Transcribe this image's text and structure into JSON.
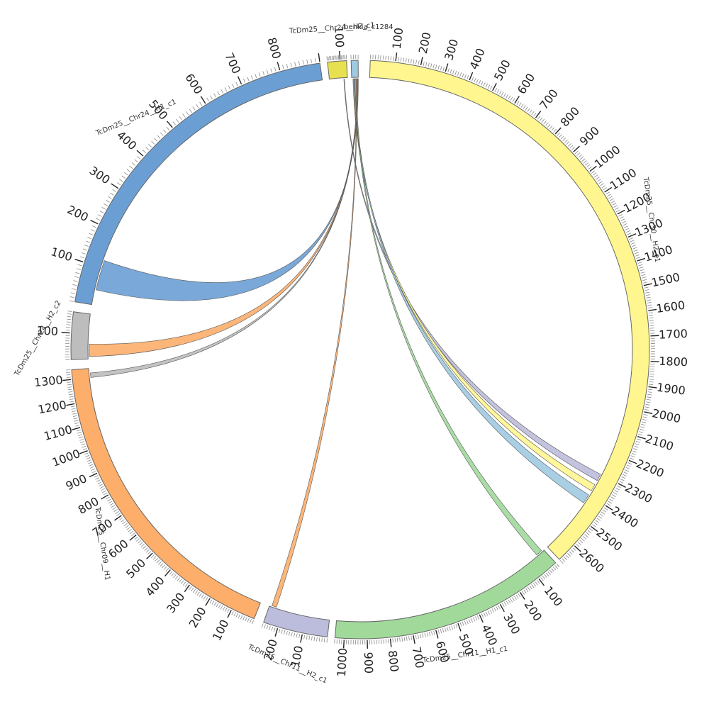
{
  "diagram": {
    "type": "circos",
    "segments": [
      {
        "id": "s_chr30",
        "name": "TcDm25__Chr30__H2_c1",
        "length": 2680,
        "color": "#fff68f",
        "ticks": [
          "100",
          "200",
          "300",
          "400",
          "500",
          "600",
          "700",
          "800",
          "900",
          "1000",
          "1100",
          "1200",
          "1300",
          "1400",
          "1500",
          "1600",
          "1700",
          "1800",
          "1900",
          "2000",
          "2100",
          "2200",
          "2300",
          "2400",
          "2500",
          "2600"
        ]
      },
      {
        "id": "s_chr11h1",
        "name": "TcDm25__Chr11__H1_c1",
        "length": 1040,
        "color": "#a1d99b",
        "ticks": [
          "100",
          "200",
          "300",
          "400",
          "500",
          "600",
          "700",
          "800",
          "900",
          "1000"
        ]
      },
      {
        "id": "s_chr11h2",
        "name": "TcDm25__Chr11__H2_c1",
        "length": 260,
        "color": "#bcbddc",
        "ticks": [
          "100",
          "200"
        ]
      },
      {
        "id": "s_chr09",
        "name": "TcDm25__Chr09__H1",
        "length": 1340,
        "color": "#fdae6b",
        "ticks": [
          "100",
          "200",
          "300",
          "400",
          "500",
          "600",
          "700",
          "800",
          "900",
          "1000",
          "1100",
          "1200",
          "1300"
        ]
      },
      {
        "id": "s_chr24h2c2",
        "name": "TcDm25__Chr24__H2_c2",
        "length": 180,
        "color": "#bdbdbd",
        "ticks": [
          "100"
        ]
      },
      {
        "id": "s_chr24h1",
        "name": "TcDm25__Chr24__H1_c1",
        "length": 900,
        "color": "#6b9fd4",
        "ticks": [
          "100",
          "200",
          "300",
          "400",
          "500",
          "600",
          "700",
          "800"
        ]
      },
      {
        "id": "s_chr24h2c1",
        "name": "TcDm25__Chr24__H2_c1",
        "length": 150,
        "color": "#e7e150",
        "ticks": [
          "100"
        ]
      },
      {
        "id": "s_benkia",
        "name": "benkia_c1284",
        "length": 30,
        "color": "#9ecae1",
        "ticks": []
      }
    ],
    "links": [
      {
        "color": "#bcbddc"
      },
      {
        "color": "#fff68f"
      },
      {
        "color": "#9ecae1"
      },
      {
        "color": "#a1d99b"
      },
      {
        "color": "#fdae6b"
      },
      {
        "color": "#bdbdbd"
      },
      {
        "color": "#fdae6b"
      },
      {
        "color": "#6b9fd4"
      }
    ]
  }
}
